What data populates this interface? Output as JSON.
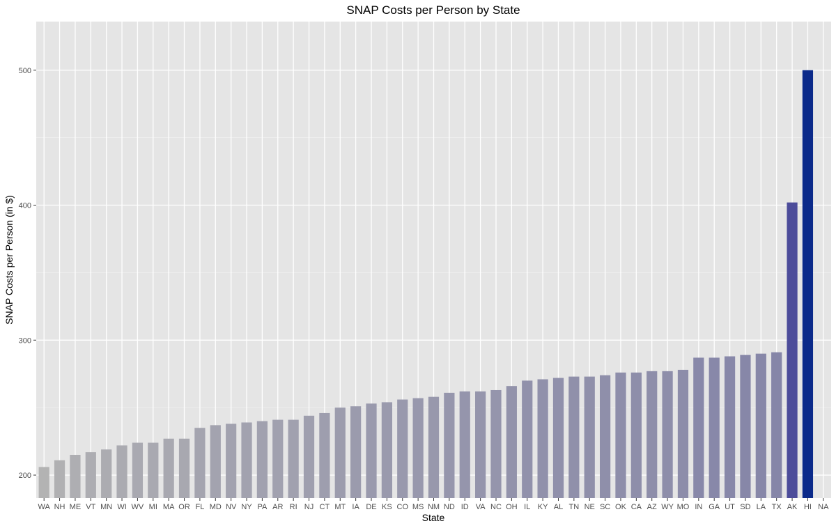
{
  "chart_data": {
    "type": "bar",
    "title": "SNAP Costs per Person by State",
    "xlabel": "State",
    "ylabel": "SNAP Costs per Person (in $)",
    "ylim": [
      183,
      536
    ],
    "yticks": [
      200,
      300,
      400,
      500
    ],
    "grid": true,
    "legend": "none",
    "colors": {
      "panel": "#e5e5e5",
      "grid_major": "#ffffff",
      "low": "#b3b3b3",
      "mid": "#4b4b9a",
      "high": "#0b2a8a"
    },
    "categories": [
      "WA",
      "NH",
      "ME",
      "VT",
      "MN",
      "WI",
      "WV",
      "MI",
      "MA",
      "OR",
      "FL",
      "MD",
      "NV",
      "NY",
      "PA",
      "AR",
      "RI",
      "NJ",
      "CT",
      "MT",
      "IA",
      "DE",
      "KS",
      "CO",
      "MS",
      "NM",
      "ND",
      "ID",
      "VA",
      "NC",
      "OH",
      "IL",
      "KY",
      "AL",
      "TN",
      "NE",
      "SC",
      "OK",
      "CA",
      "AZ",
      "WY",
      "MO",
      "IN",
      "GA",
      "UT",
      "SD",
      "LA",
      "TX",
      "AK",
      "HI",
      "NA"
    ],
    "values": [
      206,
      211,
      215,
      217,
      219,
      222,
      224,
      224,
      227,
      227,
      235,
      237,
      238,
      239,
      240,
      241,
      241,
      244,
      246,
      250,
      251,
      253,
      254,
      256,
      257,
      258,
      261,
      262,
      262,
      263,
      266,
      270,
      271,
      272,
      273,
      273,
      274,
      276,
      276,
      277,
      277,
      278,
      287,
      287,
      288,
      289,
      290,
      291,
      402,
      500,
      null
    ]
  }
}
